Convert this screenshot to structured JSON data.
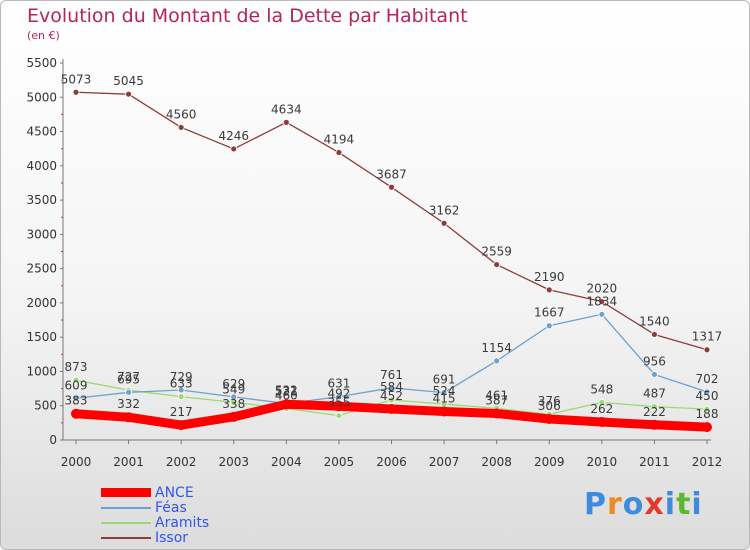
{
  "header": {
    "title": "Evolution du Montant de la Dette par Habitant",
    "subtitle": "(en €)"
  },
  "logo": {
    "letters": [
      "P",
      "r",
      "o",
      "x",
      "i",
      "t",
      "i"
    ],
    "colors": [
      "#3c8be0",
      "#ee8a24",
      "#3c8be0",
      "#e3392c",
      "#3c8be0",
      "#5cb82f",
      "#3c8be0"
    ]
  },
  "chart_data": {
    "type": "line",
    "x": [
      "2000",
      "2001",
      "2002",
      "2003",
      "2004",
      "2005",
      "2006",
      "2007",
      "2008",
      "2009",
      "2010",
      "2011",
      "2012"
    ],
    "ylim": [
      0,
      5500
    ],
    "yticks": [
      "0",
      "500",
      "1000",
      "1500",
      "2000",
      "2500",
      "3000",
      "3500",
      "4000",
      "4500",
      "5000",
      "5500"
    ],
    "grid": false,
    "legend_position": "bottom-left",
    "series": [
      {
        "name": "ANCE",
        "color": "#ff0000",
        "values": [
          383,
          332,
          217,
          338,
          521,
          492,
          452,
          415,
          387,
          306,
          262,
          222,
          188
        ],
        "labels": [
          "383",
          "332",
          "217",
          "338",
          "521",
          "492",
          "452",
          "415",
          "387",
          "306",
          "262",
          "222",
          "188"
        ]
      },
      {
        "name": "Féas",
        "color": "#6ea1cf",
        "values": [
          609,
          695,
          729,
          629,
          532,
          631,
          761,
          691,
          1154,
          1667,
          1834,
          956,
          702
        ],
        "labels": [
          "609",
          "695",
          "729",
          "629",
          "532",
          "631",
          "761",
          "691",
          "1154",
          "1667",
          "1834",
          "956",
          "702"
        ]
      },
      {
        "name": "Aramits",
        "color": "#9ed872",
        "values": [
          873,
          727,
          633,
          549,
          460,
          355,
          584,
          524,
          461,
          376,
          548,
          487,
          450
        ],
        "labels": [
          "873",
          "727",
          "633",
          "549",
          "460",
          "355",
          "584",
          "524",
          "461",
          "376",
          "548",
          "487",
          "450"
        ]
      },
      {
        "name": "Issor",
        "color": "#8e3b3b",
        "values": [
          5073,
          5045,
          4560,
          4246,
          4634,
          4194,
          3687,
          3162,
          2559,
          2190,
          2020,
          1540,
          1317
        ],
        "labels": [
          "5073",
          "5045",
          "4560",
          "4246",
          "4634",
          "4194",
          "3687",
          "3162",
          "2559",
          "2190",
          "2020",
          "1540",
          "1317"
        ]
      }
    ]
  }
}
